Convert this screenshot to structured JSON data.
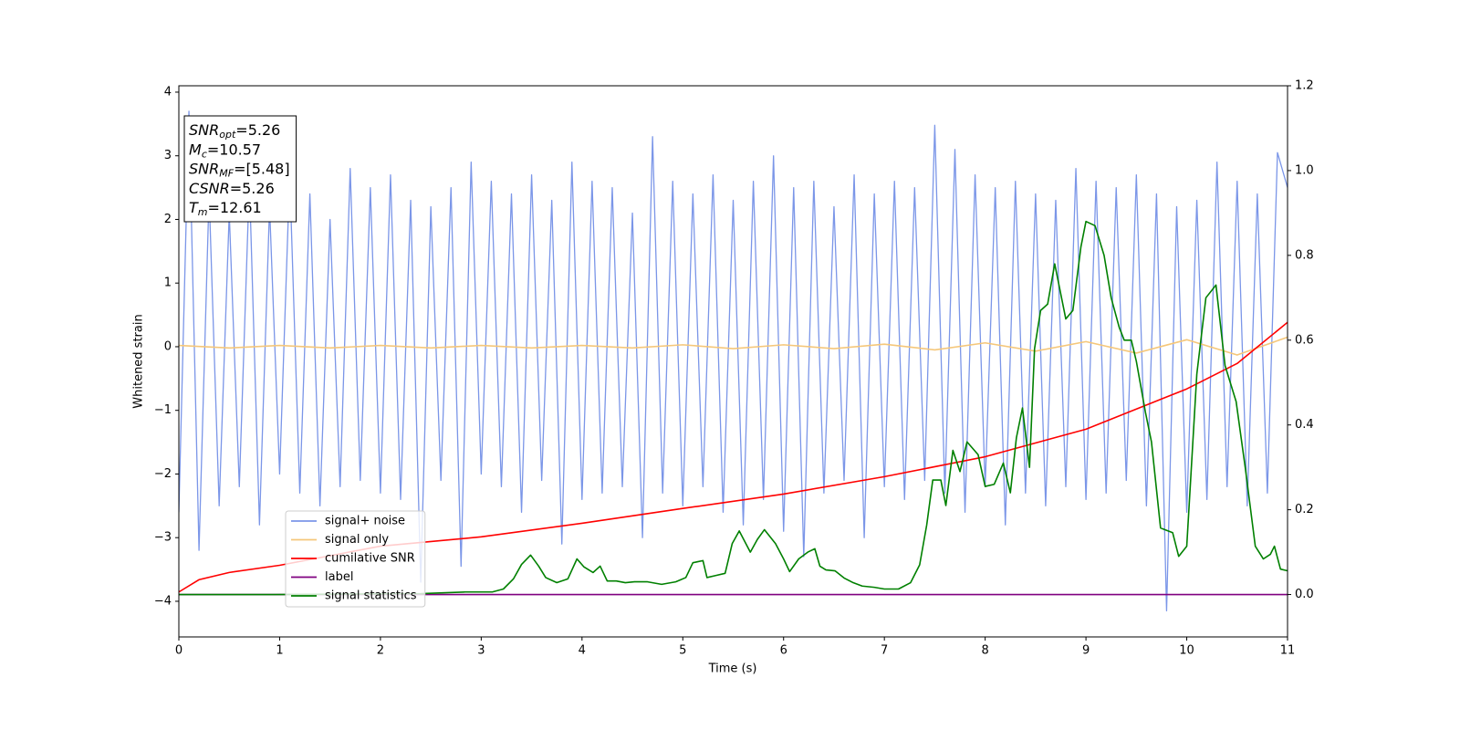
{
  "chart_data": {
    "type": "line",
    "xlabel": "Time (s)",
    "ylabel": "Whitened strain",
    "xlim": [
      0,
      11
    ],
    "xticks": [
      0,
      1,
      2,
      3,
      4,
      5,
      6,
      7,
      8,
      9,
      10,
      11
    ],
    "ylim": [
      -4.56,
      4.1
    ],
    "yticks": [
      {
        "value": -4,
        "label": "−4"
      },
      {
        "value": -3,
        "label": "−3"
      },
      {
        "value": -2,
        "label": "−2"
      },
      {
        "value": -1,
        "label": "−1"
      },
      0,
      1,
      2,
      3,
      4
    ],
    "y2lim": [
      -0.1,
      1.2
    ],
    "y2ticks": [
      {
        "value": 0,
        "label": "0.0"
      },
      0.2,
      0.4,
      0.6,
      0.8,
      {
        "value": 1,
        "label": "1.0"
      },
      1.2
    ],
    "legend": "lower left",
    "annotations": [
      {
        "base": "SNR",
        "sub": "opt",
        "rest": "=5.26"
      },
      {
        "base": "M",
        "sub": "c",
        "rest": "=10.57"
      },
      {
        "base": "SNR",
        "sub": "MF",
        "rest": "=[5.48]"
      },
      {
        "base": "CSNR",
        "rest": "=5.26"
      },
      {
        "base": "T",
        "sub": "m",
        "rest": "=12.61"
      }
    ],
    "series": [
      {
        "name": "signal+ noise",
        "color": "#7b96e8",
        "x": [
          0,
          0.1,
          0.2,
          0.3,
          0.4,
          0.5,
          0.6,
          0.7,
          0.8,
          0.9,
          1,
          1.1,
          1.2,
          1.3,
          1.4,
          1.5,
          1.6,
          1.7,
          1.8,
          1.9,
          2,
          2.1,
          2.2,
          2.3,
          2.4,
          2.5,
          2.6,
          2.7,
          2.8,
          2.9,
          3,
          3.1,
          3.2,
          3.3,
          3.4,
          3.5,
          3.6,
          3.7,
          3.8,
          3.9,
          4,
          4.1,
          4.2,
          4.3,
          4.4,
          4.5,
          4.6,
          4.7,
          4.8,
          4.9,
          5,
          5.1,
          5.2,
          5.3,
          5.4,
          5.5,
          5.6,
          5.7,
          5.8,
          5.9,
          6,
          6.1,
          6.2,
          6.3,
          6.4,
          6.5,
          6.6,
          6.7,
          6.8,
          6.9,
          7,
          7.1,
          7.2,
          7.3,
          7.4,
          7.5,
          7.6,
          7.7,
          7.8,
          7.9,
          8,
          8.1,
          8.2,
          8.3,
          8.4,
          8.5,
          8.6,
          8.7,
          8.8,
          8.9,
          9,
          9.1,
          9.2,
          9.3,
          9.4,
          9.5,
          9.6,
          9.7,
          9.8,
          9.9,
          10,
          10.1,
          10.2,
          10.3,
          10.4,
          10.5,
          10.6,
          10.7,
          10.8,
          10.9,
          11
        ],
        "values": [
          -2.6,
          3.7,
          -3.2,
          2.4,
          -2.5,
          2.1,
          -2.2,
          2.6,
          -2.8,
          2.2,
          -2.0,
          2.7,
          -2.3,
          2.4,
          -2.5,
          2.0,
          -2.2,
          2.8,
          -2.1,
          2.5,
          -2.3,
          2.7,
          -2.4,
          2.3,
          -3.7,
          2.2,
          -2.1,
          2.5,
          -3.45,
          2.9,
          -2.0,
          2.6,
          -2.2,
          2.4,
          -2.6,
          2.7,
          -2.1,
          2.3,
          -3.1,
          2.9,
          -2.4,
          2.6,
          -2.3,
          2.5,
          -2.2,
          2.1,
          -3.0,
          3.3,
          -2.3,
          2.6,
          -2.5,
          2.4,
          -2.2,
          2.7,
          -2.6,
          2.3,
          -2.8,
          2.6,
          -2.4,
          3.0,
          -2.9,
          2.5,
          -3.3,
          2.6,
          -2.3,
          2.2,
          -2.1,
          2.7,
          -3.0,
          2.4,
          -2.2,
          2.6,
          -2.4,
          2.5,
          -2.1,
          3.48,
          -2.3,
          3.1,
          -2.6,
          2.7,
          -2.2,
          2.5,
          -2.8,
          2.6,
          -2.3,
          2.4,
          -2.5,
          2.3,
          -2.2,
          2.8,
          -2.4,
          2.6,
          -2.3,
          2.5,
          -2.1,
          2.7,
          -2.5,
          2.4,
          -4.15,
          2.2,
          -2.6,
          2.3,
          -2.4,
          2.9,
          -2.2,
          2.6,
          -2.5,
          2.4,
          -2.3,
          3.05,
          2.5
        ]
      },
      {
        "name": "signal only",
        "color": "#f5c77a",
        "x": [
          0,
          0.5,
          1,
          1.5,
          2,
          2.5,
          3,
          3.5,
          4,
          4.5,
          5,
          5.5,
          6,
          6.5,
          7,
          7.5,
          8,
          8.5,
          9,
          9.5,
          10,
          10.5,
          11
        ],
        "values": [
          0.02,
          -0.02,
          0.02,
          -0.02,
          0.02,
          -0.02,
          0.02,
          -0.02,
          0.02,
          -0.02,
          0.03,
          -0.03,
          0.03,
          -0.03,
          0.04,
          -0.05,
          0.06,
          -0.07,
          0.08,
          -0.1,
          0.11,
          -0.13,
          0.15
        ]
      },
      {
        "name": "cumilative SNR",
        "color": "#ff0000",
        "axis": "y2",
        "x": [
          0,
          0.2,
          0.5,
          1,
          2,
          3,
          4,
          5,
          6,
          7,
          8,
          9,
          10,
          10.5,
          11
        ],
        "values": [
          0.006,
          0.035,
          0.052,
          0.069,
          0.114,
          0.136,
          0.168,
          0.203,
          0.237,
          0.278,
          0.325,
          0.39,
          0.485,
          0.545,
          0.642
        ]
      },
      {
        "name": "label",
        "color": "#800080",
        "axis": "y2",
        "x": [
          0,
          11
        ],
        "values": [
          0,
          0
        ]
      },
      {
        "name": "signal statistics",
        "color": "#008000",
        "axis": "y2",
        "x": [
          0,
          0.94,
          2.4,
          2.84,
          3.11,
          3.22,
          3.32,
          3.4,
          3.49,
          3.57,
          3.64,
          3.75,
          3.86,
          3.95,
          4.02,
          4.11,
          4.18,
          4.25,
          4.34,
          4.43,
          4.52,
          4.65,
          4.79,
          4.93,
          5.03,
          5.1,
          5.2,
          5.24,
          5.33,
          5.42,
          5.49,
          5.56,
          5.67,
          5.74,
          5.81,
          5.92,
          6.0,
          6.06,
          6.15,
          6.24,
          6.31,
          6.36,
          6.42,
          6.51,
          6.6,
          6.69,
          6.78,
          6.9,
          7.0,
          7.14,
          7.26,
          7.35,
          7.42,
          7.48,
          7.56,
          7.61,
          7.68,
          7.75,
          7.82,
          7.93,
          8.0,
          8.09,
          8.18,
          8.25,
          8.31,
          8.37,
          8.44,
          8.49,
          8.55,
          8.62,
          8.69,
          8.8,
          8.87,
          8.95,
          9.0,
          9.09,
          9.18,
          9.25,
          9.33,
          9.38,
          9.45,
          9.5,
          9.59,
          9.65,
          9.74,
          9.86,
          9.92,
          10.0,
          10.1,
          10.19,
          10.29,
          10.38,
          10.49,
          10.58,
          10.68,
          10.76,
          10.83,
          10.87,
          10.93,
          11
        ],
        "values": [
          0,
          0,
          0.002,
          0.006,
          0.006,
          0.013,
          0.037,
          0.071,
          0.093,
          0.067,
          0.04,
          0.028,
          0.037,
          0.084,
          0.065,
          0.052,
          0.067,
          0.032,
          0.032,
          0.028,
          0.03,
          0.03,
          0.024,
          0.03,
          0.04,
          0.075,
          0.08,
          0.04,
          0.045,
          0.05,
          0.12,
          0.15,
          0.1,
          0.13,
          0.153,
          0.12,
          0.084,
          0.054,
          0.084,
          0.1,
          0.108,
          0.067,
          0.058,
          0.056,
          0.039,
          0.028,
          0.02,
          0.017,
          0.013,
          0.013,
          0.028,
          0.07,
          0.164,
          0.27,
          0.27,
          0.21,
          0.34,
          0.29,
          0.36,
          0.33,
          0.255,
          0.26,
          0.31,
          0.24,
          0.37,
          0.44,
          0.3,
          0.58,
          0.67,
          0.685,
          0.78,
          0.65,
          0.67,
          0.82,
          0.88,
          0.87,
          0.8,
          0.7,
          0.63,
          0.6,
          0.6,
          0.55,
          0.43,
          0.36,
          0.157,
          0.146,
          0.09,
          0.114,
          0.52,
          0.7,
          0.73,
          0.54,
          0.455,
          0.3,
          0.114,
          0.084,
          0.095,
          0.114,
          0.06,
          0.056
        ]
      }
    ]
  }
}
